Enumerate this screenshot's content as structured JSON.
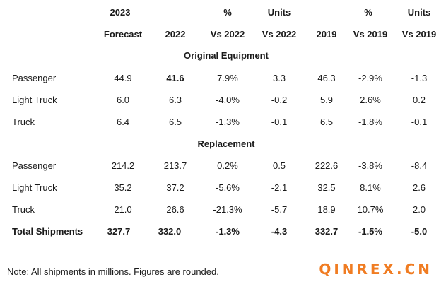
{
  "header": {
    "row1": [
      "2023",
      "",
      "%",
      "Units",
      "",
      "%",
      "Units"
    ],
    "row2": [
      "Forecast",
      "2022",
      "Vs 2022",
      "Vs 2022",
      "2019",
      "Vs 2019",
      "Vs 2019"
    ]
  },
  "sections": {
    "original": "Original Equipment",
    "replacement": "Replacement"
  },
  "rows": [
    {
      "label": "Passenger",
      "values": [
        "44.9",
        "41.6",
        "7.9%",
        "3.3",
        "46.3",
        "-2.9%",
        "-1.3"
      ]
    },
    {
      "label": "Light Truck",
      "values": [
        "6.0",
        "6.3",
        "-4.0%",
        "-0.2",
        "5.9",
        "2.6%",
        "0.2"
      ]
    },
    {
      "label": "Truck",
      "values": [
        "6.4",
        "6.5",
        "-1.3%",
        "-0.1",
        "6.5",
        "-1.8%",
        "-0.1"
      ]
    },
    {
      "label": "Passenger",
      "values": [
        "214.2",
        "213.7",
        "0.2%",
        "0.5",
        "222.6",
        "-3.8%",
        "-8.4"
      ]
    },
    {
      "label": "Light Truck",
      "values": [
        "35.2",
        "37.2",
        "-5.6%",
        "-2.1",
        "32.5",
        "8.1%",
        "2.6"
      ]
    },
    {
      "label": "Truck",
      "values": [
        "21.0",
        "26.6",
        "-21.3%",
        "-5.7",
        "18.9",
        "10.7%",
        "2.0"
      ]
    }
  ],
  "total": {
    "label": "Total Shipments",
    "values": [
      "327.7",
      "332.0",
      "-1.3%",
      "-4.3",
      "332.7",
      "-1.5%",
      "-5.0"
    ]
  },
  "note": "Note: All shipments in millions. Figures are rounded.",
  "watermark": "QINREX.CN",
  "colors": {
    "watermark": "#f07c22",
    "text": "#1a1a1a"
  }
}
